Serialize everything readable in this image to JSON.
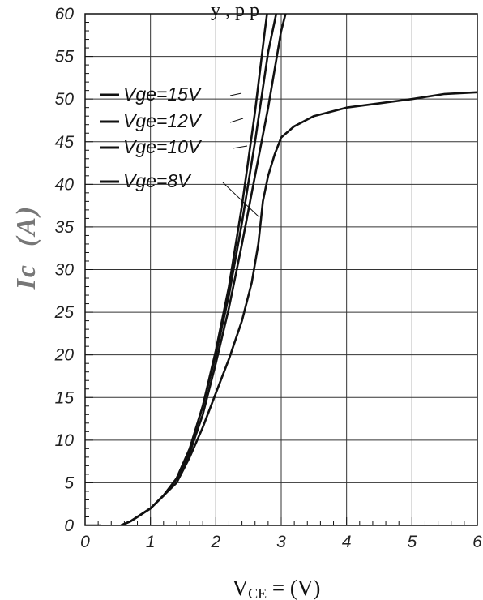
{
  "chart_data": {
    "type": "line",
    "title": "",
    "title_fragment": "y        , p        p",
    "xlabel": {
      "main": "V",
      "sub": "CE",
      "rest": " = (V)"
    },
    "ylabel": "Ic  (A)",
    "xlim": [
      0,
      6
    ],
    "ylim": [
      0,
      60
    ],
    "x_ticks": [
      "0",
      "1",
      "2",
      "3",
      "4",
      "5",
      "6"
    ],
    "y_ticks": [
      "0",
      "5",
      "10",
      "15",
      "20",
      "25",
      "30",
      "35",
      "40",
      "45",
      "50",
      "55",
      "60"
    ],
    "grid": true,
    "legend_placement": "top-left",
    "series": [
      {
        "name": "Vge=15V",
        "color": "#111111",
        "points": [
          [
            0.55,
            0
          ],
          [
            0.7,
            0.5
          ],
          [
            1.0,
            2
          ],
          [
            1.2,
            3.5
          ],
          [
            1.4,
            5.5
          ],
          [
            1.6,
            9
          ],
          [
            1.8,
            14
          ],
          [
            2.0,
            20.5
          ],
          [
            2.2,
            28
          ],
          [
            2.4,
            37.5
          ],
          [
            2.6,
            48.5
          ],
          [
            2.75,
            58
          ],
          [
            2.8,
            61
          ]
        ]
      },
      {
        "name": "Vge=12V",
        "color": "#111111",
        "points": [
          [
            0.55,
            0
          ],
          [
            0.7,
            0.5
          ],
          [
            1.0,
            2
          ],
          [
            1.2,
            3.5
          ],
          [
            1.4,
            5.5
          ],
          [
            1.6,
            9
          ],
          [
            1.8,
            14
          ],
          [
            2.0,
            20
          ],
          [
            2.2,
            27
          ],
          [
            2.4,
            35.5
          ],
          [
            2.6,
            45
          ],
          [
            2.8,
            55.5
          ],
          [
            2.95,
            61
          ]
        ]
      },
      {
        "name": "Vge=10V",
        "color": "#111111",
        "points": [
          [
            0.55,
            0
          ],
          [
            0.7,
            0.5
          ],
          [
            1.0,
            2
          ],
          [
            1.2,
            3.5
          ],
          [
            1.4,
            5.5
          ],
          [
            1.6,
            8.5
          ],
          [
            1.8,
            13
          ],
          [
            2.0,
            19
          ],
          [
            2.2,
            25.5
          ],
          [
            2.4,
            33
          ],
          [
            2.6,
            41
          ],
          [
            2.8,
            49
          ],
          [
            3.0,
            58
          ],
          [
            3.1,
            61
          ]
        ]
      },
      {
        "name": "Vge=8V",
        "color": "#111111",
        "points": [
          [
            0.55,
            0
          ],
          [
            0.7,
            0.5
          ],
          [
            1.0,
            2
          ],
          [
            1.2,
            3.5
          ],
          [
            1.4,
            5
          ],
          [
            1.6,
            8
          ],
          [
            1.8,
            11.5
          ],
          [
            2.0,
            15.5
          ],
          [
            2.2,
            19.5
          ],
          [
            2.4,
            24
          ],
          [
            2.55,
            28.5
          ],
          [
            2.65,
            33
          ],
          [
            2.72,
            38
          ],
          [
            2.8,
            41
          ],
          [
            2.9,
            43.5
          ],
          [
            3.0,
            45.5
          ],
          [
            3.2,
            46.8
          ],
          [
            3.5,
            48
          ],
          [
            4.0,
            49
          ],
          [
            4.5,
            49.5
          ],
          [
            5.0,
            50
          ],
          [
            5.5,
            50.6
          ],
          [
            6.0,
            50.8
          ]
        ]
      }
    ]
  }
}
